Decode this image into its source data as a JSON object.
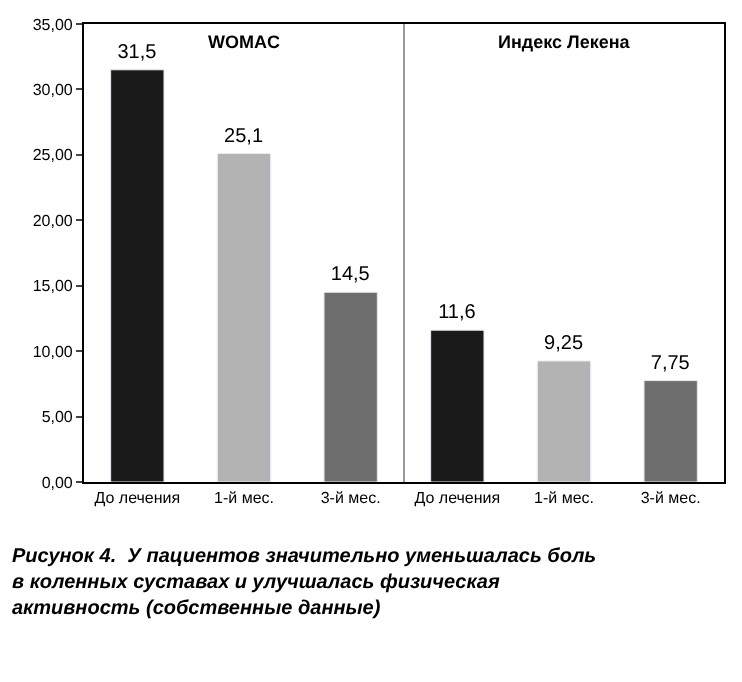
{
  "chart_data": {
    "type": "bar",
    "categories": [
      "До лечения",
      "1-й мес.",
      "3-й мес.",
      "До лечения",
      "1-й мес.",
      "3-й мес."
    ],
    "values": [
      31.5,
      25.1,
      14.5,
      11.6,
      9.25,
      7.75
    ],
    "colors": [
      "#1a1a1a",
      "#b3b3b3",
      "#6e6e6e",
      "#1a1a1a",
      "#b3b3b3",
      "#6e6e6e"
    ],
    "value_labels": [
      "31,5",
      "25,1",
      "14,5",
      "11,6",
      "9,25",
      "7,75"
    ],
    "ylim": [
      0,
      35
    ],
    "yticks": [
      {
        "value": 0,
        "label": "0,00"
      },
      {
        "value": 5,
        "label": "5,00"
      },
      {
        "value": 10,
        "label": "10,00"
      },
      {
        "value": 15,
        "label": "15,00"
      },
      {
        "value": 20,
        "label": "20,00"
      },
      {
        "value": 25,
        "label": "25,00"
      },
      {
        "value": 30,
        "label": "30,00"
      },
      {
        "value": 35,
        "label": "35,00"
      }
    ],
    "annotations": [
      "WOMAC",
      "Индекс Лекена",
      "Рисунок 4.  У пациентов значительно уменьшалась боль в коленных суставах и улучшалась физическая активность (собственные данные)"
    ]
  }
}
